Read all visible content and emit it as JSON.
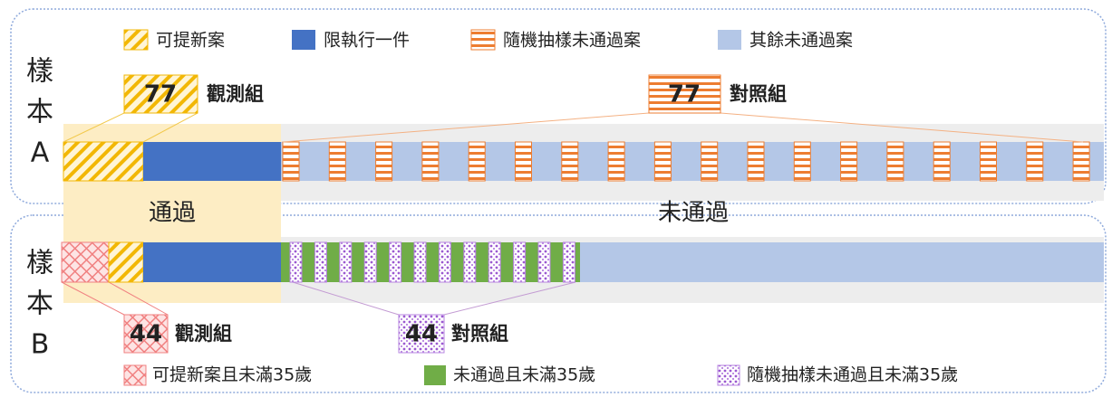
{
  "legend_top": [
    "可提新案",
    "限執行一件",
    "隨機抽樣未通過案",
    "其餘未通過案"
  ],
  "sample_a": {
    "label": [
      "樣",
      "本",
      "A"
    ],
    "treatment": {
      "count": 77,
      "label": "觀測組"
    },
    "control": {
      "count": 77,
      "label": "對照組"
    }
  },
  "regions": {
    "pass": "通過",
    "fail": "未通過"
  },
  "sample_b": {
    "label": [
      "樣",
      "本",
      "B"
    ],
    "treatment": {
      "count": 44,
      "label": "觀測組"
    },
    "control": {
      "count": 44,
      "label": "對照組"
    }
  },
  "legend_bottom": [
    "可提新案且未滿35歲",
    "未通過且未滿35歲",
    "隨機抽樣未通過且未滿35歲"
  ]
}
